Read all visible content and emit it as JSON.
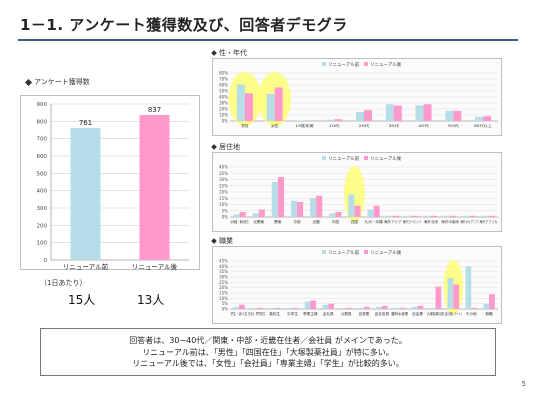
{
  "slide": {
    "title": "1－1. アンケート獲得数及び、回答者デモグラ",
    "page_number": "5",
    "per_day_label": "（1日あたり）",
    "per_day_before": "15人",
    "per_day_after": "13人",
    "summary_lines": [
      "回答者は、30−40代／関東・中部・近畿在住者／会社員 がメインであった。",
      "リニューアル前は、「男性」「四国在住」「大塚製薬社員」が特に多い。",
      "リニューアル後では、「女性」「会社員」「専業主婦」「学生」が比較的多い。"
    ]
  },
  "colors": {
    "before": "#b7dde8",
    "after": "#ff99cc",
    "highlight": "#ffff66",
    "rule": "#3d5a80"
  },
  "chart_data": [
    {
      "id": "main",
      "type": "bar",
      "title": "アンケート獲得数",
      "categories": [
        "リニューアル前",
        "リニューアル後"
      ],
      "values": [
        761,
        837
      ],
      "colors": [
        "#b7dde8",
        "#ff99cc"
      ],
      "ylim": [
        0,
        900
      ],
      "yticks": [
        0,
        100,
        200,
        300,
        400,
        500,
        600,
        700,
        800,
        900
      ],
      "grid": true,
      "legend": "none"
    },
    {
      "id": "gender_age",
      "type": "bar",
      "title": "性・年代",
      "legend": "top",
      "series": [
        {
          "name": "リニューアル前",
          "values": [
            61,
            45,
            1,
            2,
            15,
            28,
            26,
            17,
            7
          ]
        },
        {
          "name": "リニューアル後",
          "values": [
            46,
            56,
            0,
            3,
            18,
            26,
            28,
            17,
            8
          ]
        }
      ],
      "categories": [
        "男性",
        "女性",
        "19歳未満",
        "10代",
        "20代",
        "30代",
        "40代",
        "50代",
        "60代以上"
      ],
      "ylim": [
        0,
        80
      ],
      "yticks": [
        "0%",
        "10%",
        "20%",
        "30%",
        "40%",
        "50%",
        "60%",
        "70%",
        "80%"
      ],
      "highlight": [
        0,
        1
      ]
    },
    {
      "id": "region",
      "type": "bar",
      "title": "居住地",
      "legend": "top",
      "series": [
        {
          "name": "リニューアル前",
          "values": [
            2,
            3,
            28,
            13,
            15,
            3,
            18,
            6,
            1,
            1,
            1,
            1,
            1,
            1
          ]
        },
        {
          "name": "リニューアル後",
          "values": [
            4,
            6,
            32,
            12,
            17,
            4,
            9,
            9,
            1,
            1,
            1,
            1,
            1,
            1
          ]
        }
      ],
      "categories": [
        "北海道・東北地方",
        "北関東",
        "関東",
        "中部",
        "近畿",
        "中国",
        "四国",
        "九州・沖縄",
        "海外アジア",
        "海外ヨーロッパ",
        "海外北米",
        "海外中南米",
        "海外オセアニア",
        "海外アフリカ"
      ],
      "ylim": [
        0,
        40
      ],
      "yticks": [
        "0%",
        "5%",
        "10%",
        "15%",
        "20%",
        "25%",
        "30%",
        "35%",
        "40%"
      ],
      "highlight": [
        6
      ]
    },
    {
      "id": "occupation",
      "type": "bar",
      "title": "職業",
      "legend": "top",
      "series": [
        {
          "name": "リニューアル前",
          "values": [
            2,
            1,
            1,
            1,
            7,
            4,
            1,
            1,
            2,
            1,
            2,
            1,
            29,
            40,
            5
          ]
        },
        {
          "name": "リニューアル後",
          "values": [
            4,
            1,
            1,
            1,
            8,
            5,
            1,
            2,
            3,
            1,
            3,
            21,
            23,
            1,
            14
          ]
        }
      ],
      "categories": [
        "学生・浪人生",
        "短大生・専門学校生",
        "高校生",
        "中学生",
        "専業主婦",
        "会社員",
        "公務員",
        "自営業",
        "会社役員",
        "農林水産業",
        "自由業",
        "大塚製薬社員",
        "会社員(パート)",
        "その他",
        "無職"
      ],
      "ylim": [
        0,
        45
      ],
      "yticks": [
        "0%",
        "5%",
        "10%",
        "15%",
        "20%",
        "25%",
        "30%",
        "35%",
        "40%",
        "45%"
      ],
      "highlight": [
        12
      ]
    }
  ]
}
